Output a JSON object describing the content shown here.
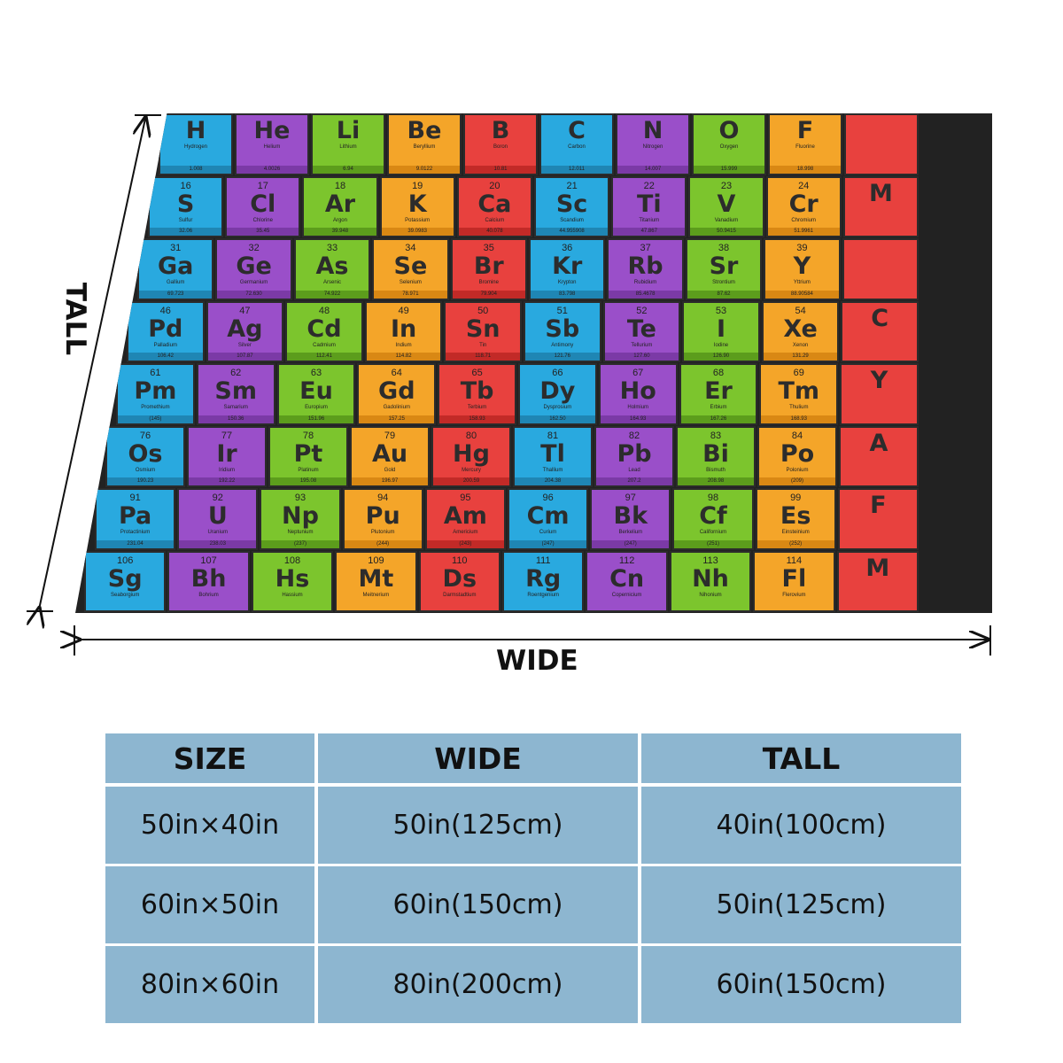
{
  "image": {
    "dimension_labels": {
      "tall": "TALL",
      "wide": "WIDE"
    }
  },
  "blanket": {
    "rows": [
      [
        {
          "sym": "H",
          "num": "",
          "name": "Hydrogen",
          "mass": "1.008",
          "color": "blue"
        },
        {
          "sym": "He",
          "num": "",
          "name": "Helium",
          "mass": "4.0026",
          "color": "purple"
        },
        {
          "sym": "Li",
          "num": "",
          "name": "Lithium",
          "mass": "6.94",
          "color": "green"
        },
        {
          "sym": "Be",
          "num": "",
          "name": "Beryllium",
          "mass": "9.0122",
          "color": "orange"
        },
        {
          "sym": "B",
          "num": "",
          "name": "Boron",
          "mass": "10.81",
          "color": "red"
        },
        {
          "sym": "C",
          "num": "",
          "name": "Carbon",
          "mass": "12.011",
          "color": "blue"
        },
        {
          "sym": "N",
          "num": "",
          "name": "Nitrogen",
          "mass": "14.007",
          "color": "purple"
        },
        {
          "sym": "O",
          "num": "",
          "name": "Oxygen",
          "mass": "15.999",
          "color": "green"
        },
        {
          "sym": "F",
          "num": "",
          "name": "Fluorine",
          "mass": "18.998",
          "color": "orange"
        },
        {
          "sym": "",
          "num": "",
          "name": "",
          "mass": "",
          "color": "red"
        }
      ],
      [
        {
          "sym": "S",
          "num": "16",
          "name": "Sulfur",
          "mass": "32.06",
          "color": "blue"
        },
        {
          "sym": "Cl",
          "num": "17",
          "name": "Chlorine",
          "mass": "35.45",
          "color": "purple"
        },
        {
          "sym": "Ar",
          "num": "18",
          "name": "Argon",
          "mass": "39.948",
          "color": "green"
        },
        {
          "sym": "K",
          "num": "19",
          "name": "Potassium",
          "mass": "39.0983",
          "color": "orange"
        },
        {
          "sym": "Ca",
          "num": "20",
          "name": "Calcium",
          "mass": "40.078",
          "color": "red"
        },
        {
          "sym": "Sc",
          "num": "21",
          "name": "Scandium",
          "mass": "44.955908",
          "color": "blue"
        },
        {
          "sym": "Ti",
          "num": "22",
          "name": "Titanium",
          "mass": "47.867",
          "color": "purple"
        },
        {
          "sym": "V",
          "num": "23",
          "name": "Vanadium",
          "mass": "50.9415",
          "color": "green"
        },
        {
          "sym": "Cr",
          "num": "24",
          "name": "Chromium",
          "mass": "51.9961",
          "color": "orange"
        },
        {
          "sym": "M",
          "num": "",
          "name": "",
          "mass": "",
          "color": "red"
        }
      ],
      [
        {
          "sym": "Ga",
          "num": "31",
          "name": "Gallium",
          "mass": "69.723",
          "color": "blue"
        },
        {
          "sym": "Ge",
          "num": "32",
          "name": "Germanium",
          "mass": "72.630",
          "color": "purple"
        },
        {
          "sym": "As",
          "num": "33",
          "name": "Arsenic",
          "mass": "74.922",
          "color": "green"
        },
        {
          "sym": "Se",
          "num": "34",
          "name": "Selenium",
          "mass": "78.971",
          "color": "orange"
        },
        {
          "sym": "Br",
          "num": "35",
          "name": "Bromine",
          "mass": "79.904",
          "color": "red"
        },
        {
          "sym": "Kr",
          "num": "36",
          "name": "Krypton",
          "mass": "83.798",
          "color": "blue"
        },
        {
          "sym": "Rb",
          "num": "37",
          "name": "Rubidium",
          "mass": "85.4678",
          "color": "purple"
        },
        {
          "sym": "Sr",
          "num": "38",
          "name": "Strontium",
          "mass": "87.62",
          "color": "green"
        },
        {
          "sym": "Y",
          "num": "39",
          "name": "Yttrium",
          "mass": "88.90584",
          "color": "orange"
        },
        {
          "sym": "",
          "num": "",
          "name": "",
          "mass": "",
          "color": "red"
        }
      ],
      [
        {
          "sym": "Pd",
          "num": "46",
          "name": "Palladium",
          "mass": "106.42",
          "color": "blue"
        },
        {
          "sym": "Ag",
          "num": "47",
          "name": "Silver",
          "mass": "107.87",
          "color": "purple"
        },
        {
          "sym": "Cd",
          "num": "48",
          "name": "Cadmium",
          "mass": "112.41",
          "color": "green"
        },
        {
          "sym": "In",
          "num": "49",
          "name": "Indium",
          "mass": "114.82",
          "color": "orange"
        },
        {
          "sym": "Sn",
          "num": "50",
          "name": "Tin",
          "mass": "118.71",
          "color": "red"
        },
        {
          "sym": "Sb",
          "num": "51",
          "name": "Antimony",
          "mass": "121.76",
          "color": "blue"
        },
        {
          "sym": "Te",
          "num": "52",
          "name": "Tellurium",
          "mass": "127.60",
          "color": "purple"
        },
        {
          "sym": "I",
          "num": "53",
          "name": "Iodine",
          "mass": "126.90",
          "color": "green"
        },
        {
          "sym": "Xe",
          "num": "54",
          "name": "Xenon",
          "mass": "131.29",
          "color": "orange"
        },
        {
          "sym": "C",
          "num": "",
          "name": "",
          "mass": "",
          "color": "red"
        }
      ],
      [
        {
          "sym": "Pm",
          "num": "61",
          "name": "Promethium",
          "mass": "(145)",
          "color": "blue"
        },
        {
          "sym": "Sm",
          "num": "62",
          "name": "Samarium",
          "mass": "150.36",
          "color": "purple"
        },
        {
          "sym": "Eu",
          "num": "63",
          "name": "Europium",
          "mass": "151.96",
          "color": "green"
        },
        {
          "sym": "Gd",
          "num": "64",
          "name": "Gadolinium",
          "mass": "157.25",
          "color": "orange"
        },
        {
          "sym": "Tb",
          "num": "65",
          "name": "Terbium",
          "mass": "158.93",
          "color": "red"
        },
        {
          "sym": "Dy",
          "num": "66",
          "name": "Dysprosium",
          "mass": "162.50",
          "color": "blue"
        },
        {
          "sym": "Ho",
          "num": "67",
          "name": "Holmium",
          "mass": "164.93",
          "color": "purple"
        },
        {
          "sym": "Er",
          "num": "68",
          "name": "Erbium",
          "mass": "167.26",
          "color": "green"
        },
        {
          "sym": "Tm",
          "num": "69",
          "name": "Thulium",
          "mass": "168.93",
          "color": "orange"
        },
        {
          "sym": "Y",
          "num": "",
          "name": "",
          "mass": "",
          "color": "red"
        }
      ],
      [
        {
          "sym": "Os",
          "num": "76",
          "name": "Osmium",
          "mass": "190.23",
          "color": "blue"
        },
        {
          "sym": "Ir",
          "num": "77",
          "name": "Iridium",
          "mass": "192.22",
          "color": "purple"
        },
        {
          "sym": "Pt",
          "num": "78",
          "name": "Platinum",
          "mass": "195.08",
          "color": "green"
        },
        {
          "sym": "Au",
          "num": "79",
          "name": "Gold",
          "mass": "196.97",
          "color": "orange"
        },
        {
          "sym": "Hg",
          "num": "80",
          "name": "Mercury",
          "mass": "200.59",
          "color": "red"
        },
        {
          "sym": "Tl",
          "num": "81",
          "name": "Thallium",
          "mass": "204.38",
          "color": "blue"
        },
        {
          "sym": "Pb",
          "num": "82",
          "name": "Lead",
          "mass": "207.2",
          "color": "purple"
        },
        {
          "sym": "Bi",
          "num": "83",
          "name": "Bismuth",
          "mass": "208.98",
          "color": "green"
        },
        {
          "sym": "Po",
          "num": "84",
          "name": "Polonium",
          "mass": "(209)",
          "color": "orange"
        },
        {
          "sym": "A",
          "num": "",
          "name": "",
          "mass": "",
          "color": "red"
        }
      ],
      [
        {
          "sym": "Pa",
          "num": "91",
          "name": "Protactinium",
          "mass": "231.04",
          "color": "blue"
        },
        {
          "sym": "U",
          "num": "92",
          "name": "Uranium",
          "mass": "238.03",
          "color": "purple"
        },
        {
          "sym": "Np",
          "num": "93",
          "name": "Neptunium",
          "mass": "(237)",
          "color": "green"
        },
        {
          "sym": "Pu",
          "num": "94",
          "name": "Plutonium",
          "mass": "(244)",
          "color": "orange"
        },
        {
          "sym": "Am",
          "num": "95",
          "name": "Americium",
          "mass": "(243)",
          "color": "red"
        },
        {
          "sym": "Cm",
          "num": "96",
          "name": "Curium",
          "mass": "(247)",
          "color": "blue"
        },
        {
          "sym": "Bk",
          "num": "97",
          "name": "Berkelium",
          "mass": "(247)",
          "color": "purple"
        },
        {
          "sym": "Cf",
          "num": "98",
          "name": "Californium",
          "mass": "(251)",
          "color": "green"
        },
        {
          "sym": "Es",
          "num": "99",
          "name": "Einsteinium",
          "mass": "(252)",
          "color": "orange"
        },
        {
          "sym": "F",
          "num": "",
          "name": "",
          "mass": "",
          "color": "red"
        }
      ],
      [
        {
          "sym": "Sg",
          "num": "106",
          "name": "Seaborgium",
          "mass": "",
          "color": "blue"
        },
        {
          "sym": "Bh",
          "num": "107",
          "name": "Bohrium",
          "mass": "",
          "color": "purple"
        },
        {
          "sym": "Hs",
          "num": "108",
          "name": "Hassium",
          "mass": "",
          "color": "green"
        },
        {
          "sym": "Mt",
          "num": "109",
          "name": "Meitnerium",
          "mass": "",
          "color": "orange"
        },
        {
          "sym": "Ds",
          "num": "110",
          "name": "Darmstadtium",
          "mass": "",
          "color": "red"
        },
        {
          "sym": "Rg",
          "num": "111",
          "name": "Roentgenium",
          "mass": "",
          "color": "blue"
        },
        {
          "sym": "Cn",
          "num": "112",
          "name": "Copernicium",
          "mass": "",
          "color": "purple"
        },
        {
          "sym": "Nh",
          "num": "113",
          "name": "Nihonium",
          "mass": "",
          "color": "green"
        },
        {
          "sym": "Fl",
          "num": "114",
          "name": "Flerovium",
          "mass": "",
          "color": "orange"
        },
        {
          "sym": "M",
          "num": "",
          "name": "",
          "mass": "",
          "color": "red"
        }
      ]
    ]
  },
  "size_table": {
    "headers": [
      "SIZE",
      "WIDE",
      "TALL"
    ],
    "rows": [
      [
        "50in×40in",
        "50in(125cm)",
        "40in(100cm)"
      ],
      [
        "60in×50in",
        "60in(150cm)",
        "50in(125cm)"
      ],
      [
        "80in×60in",
        "80in(200cm)",
        "60in(150cm)"
      ]
    ]
  },
  "colors": {
    "blue": "#29a9df",
    "purple": "#9a4fc9",
    "green": "#7cc52d",
    "orange": "#f4a529",
    "red": "#e8413e",
    "table_bg": "#8db6d0"
  }
}
